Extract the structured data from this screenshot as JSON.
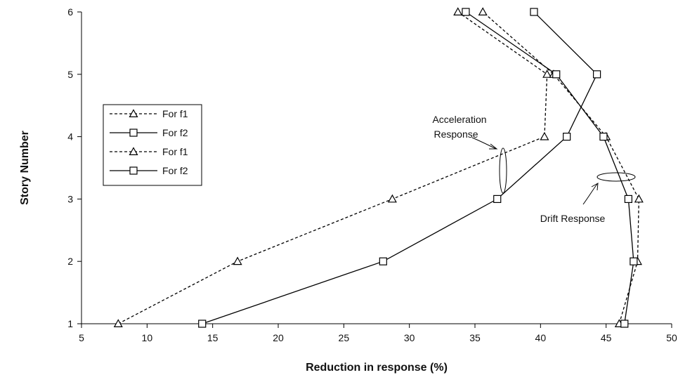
{
  "chart_data": {
    "type": "line",
    "xlabel": "Reduction in response (%)",
    "ylabel": "Story Number",
    "xlim": [
      5,
      50
    ],
    "ylim": [
      1,
      6
    ],
    "x_ticks": [
      "5",
      "10",
      "15",
      "20",
      "25",
      "30",
      "35",
      "40",
      "45",
      "50"
    ],
    "y_ticks": [
      "1",
      "2",
      "3",
      "4",
      "5",
      "6"
    ],
    "grid": false,
    "legend_position": "left",
    "series": [
      {
        "name": "For f1",
        "group": "Acceleration Response",
        "marker": "triangle",
        "line": "dashed",
        "points": [
          [
            7.8,
            1
          ],
          [
            16.9,
            2
          ],
          [
            28.7,
            3
          ],
          [
            40.3,
            4
          ],
          [
            40.5,
            5
          ],
          [
            33.7,
            6
          ]
        ]
      },
      {
        "name": "For f2",
        "group": "Acceleration Response",
        "marker": "square",
        "line": "solid",
        "points": [
          [
            14.2,
            1
          ],
          [
            28.0,
            2
          ],
          [
            36.7,
            3
          ],
          [
            42.0,
            4
          ],
          [
            44.3,
            5
          ],
          [
            39.5,
            6
          ]
        ]
      },
      {
        "name": "For f1",
        "group": "Drift Response",
        "marker": "triangle",
        "line": "dashed",
        "points": [
          [
            46.0,
            1
          ],
          [
            47.4,
            2
          ],
          [
            47.5,
            3
          ],
          [
            45.0,
            4
          ],
          [
            41.0,
            5
          ],
          [
            35.6,
            6
          ]
        ]
      },
      {
        "name": "For f2",
        "group": "Drift Response",
        "marker": "square",
        "line": "solid",
        "points": [
          [
            46.4,
            1
          ],
          [
            47.1,
            2
          ],
          [
            46.7,
            3
          ],
          [
            44.8,
            4
          ],
          [
            41.2,
            5
          ],
          [
            34.3,
            6
          ]
        ]
      }
    ],
    "annotations": [
      "Acceleration Response",
      "Drift Response"
    ]
  }
}
